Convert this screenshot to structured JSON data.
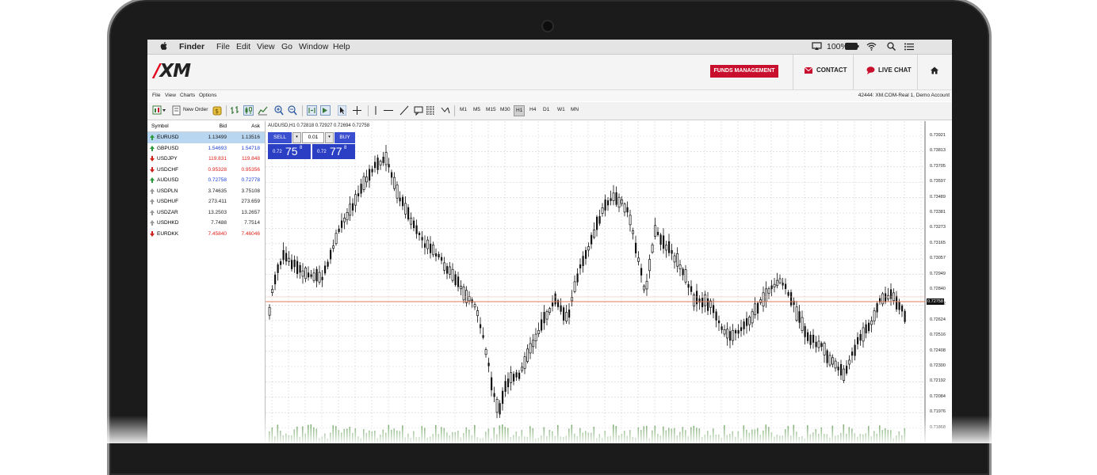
{
  "menubar": {
    "app": "Finder",
    "items": [
      "File",
      "Edit",
      "View",
      "Go",
      "Window",
      "Help"
    ],
    "battery": "100%"
  },
  "header": {
    "logo": "XM",
    "funds": "FUNDS MANAGEMENT",
    "contact": "CONTACT",
    "livechat": "LIVE CHAT",
    "accent": "#c8102e"
  },
  "app_menu": {
    "items": [
      "File",
      "View",
      "Charts",
      "Options"
    ],
    "account": "42444: XM.COM-Real 1, Demo Account"
  },
  "toolbar": {
    "new_order": "New Order",
    "timeframes": [
      "M1",
      "M5",
      "M15",
      "M30",
      "H1",
      "H4",
      "D1",
      "W1",
      "MN"
    ],
    "selected_timeframe": "H1"
  },
  "market_watch": {
    "headers": {
      "symbol": "Symbol",
      "bid": "Bid",
      "ask": "Ask"
    },
    "rows": [
      {
        "symbol": "EURUSD",
        "bid": "1.13499",
        "ask": "1.13516",
        "dir": "up",
        "color": "#222222"
      },
      {
        "symbol": "GBPUSD",
        "bid": "1.54693",
        "ask": "1.54718",
        "dir": "up",
        "color": "#1a3fd0"
      },
      {
        "symbol": "USDJPY",
        "bid": "119.831",
        "ask": "119.848",
        "dir": "down",
        "color": "#e0201a"
      },
      {
        "symbol": "USDCHF",
        "bid": "0.95328",
        "ask": "0.95356",
        "dir": "down",
        "color": "#e0201a"
      },
      {
        "symbol": "AUDUSD",
        "bid": "0.72758",
        "ask": "0.72778",
        "dir": "up",
        "color": "#1a3fd0"
      },
      {
        "symbol": "USDPLN",
        "bid": "3.74635",
        "ask": "3.75108",
        "dir": "none",
        "color": "#222222"
      },
      {
        "symbol": "USDHUF",
        "bid": "273.411",
        "ask": "273.659",
        "dir": "none",
        "color": "#222222"
      },
      {
        "symbol": "USDZAR",
        "bid": "13.2503",
        "ask": "13.2657",
        "dir": "none",
        "color": "#222222"
      },
      {
        "symbol": "USDHKD",
        "bid": "7.7488",
        "ask": "7.7514",
        "dir": "none",
        "color": "#222222"
      },
      {
        "symbol": "EURDKK",
        "bid": "7.45840",
        "ask": "7.46046",
        "dir": "down",
        "color": "#e0201a"
      }
    ]
  },
  "chart": {
    "info": "AUDUSD,H1  0.72818 0.72927 0.72694 0.72758",
    "sell": "SELL",
    "buy": "BUY",
    "quantity": "0.01",
    "sell_prefix": "0.72",
    "sell_big": "75",
    "sell_sup": "8",
    "buy_prefix": "0.72",
    "buy_big": "77",
    "buy_sup": "8",
    "current_price": "0.72758",
    "price_labels": [
      "0.73921",
      "0.73813",
      "0.73705",
      "0.73597",
      "0.73489",
      "0.73381",
      "0.73273",
      "0.73165",
      "0.73057",
      "0.72949",
      "0.72840",
      "0.72732",
      "0.72624",
      "0.72516",
      "0.72408",
      "0.72300",
      "0.72192",
      "0.72084",
      "0.71976",
      "0.71868"
    ],
    "colors": {
      "grid": "#d2d2d2",
      "candle": "#111111",
      "line": "#e07a5a",
      "volume": "#4a8a3a"
    }
  }
}
